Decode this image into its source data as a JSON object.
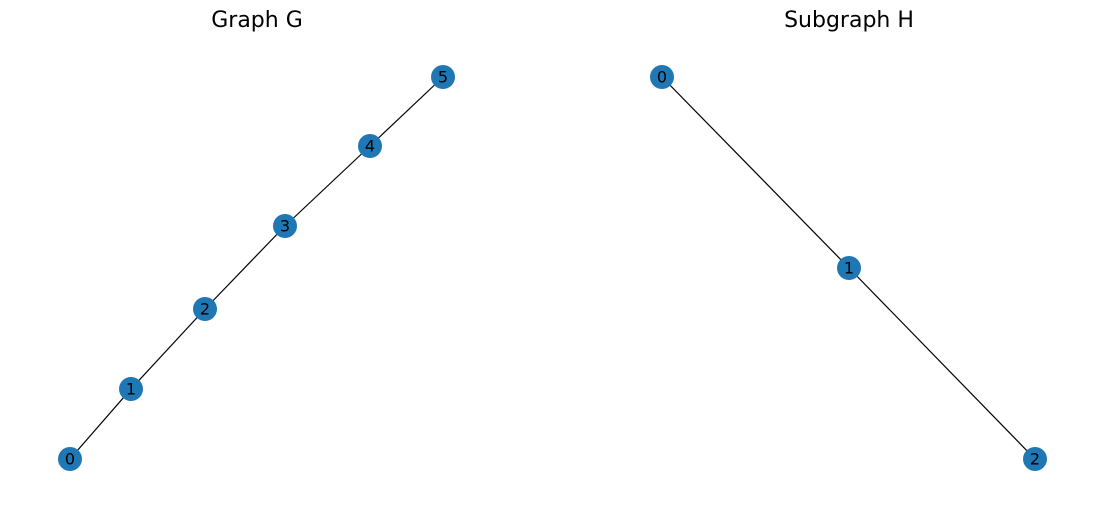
{
  "graphs": [
    {
      "title": "Graph G",
      "nodes": [
        "0",
        "1",
        "2",
        "3",
        "4",
        "5"
      ],
      "edges": [
        [
          "0",
          "1"
        ],
        [
          "1",
          "2"
        ],
        [
          "2",
          "3"
        ],
        [
          "3",
          "4"
        ],
        [
          "4",
          "5"
        ]
      ]
    },
    {
      "title": "Subgraph H",
      "nodes": [
        "0",
        "1",
        "2"
      ],
      "edges": [
        [
          "0",
          "1"
        ],
        [
          "1",
          "2"
        ]
      ]
    }
  ],
  "colors": {
    "node_fill": "#1f77b4",
    "edge": "#000000",
    "label": "#000000"
  }
}
